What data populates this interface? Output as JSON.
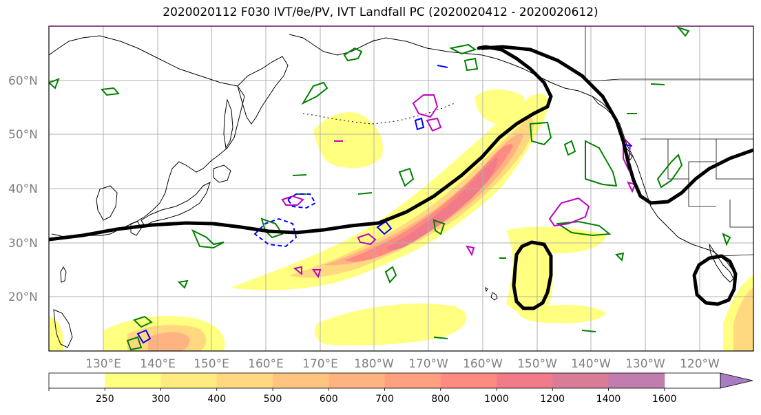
{
  "title": "2020020112 F030 IVT/θe/PV, IVT Landfall PC (2020020412 - 2020020612)",
  "map": {
    "type": "geographic-contour-map",
    "projection": "PlateCarree",
    "lon_range": [
      120,
      250
    ],
    "lat_range": [
      10,
      70
    ],
    "lat_ticks": [
      {
        "lat": 60,
        "label": "60°N"
      },
      {
        "lat": 50,
        "label": "50°N"
      },
      {
        "lat": 40,
        "label": "40°N"
      },
      {
        "lat": 30,
        "label": "30°N"
      },
      {
        "lat": 20,
        "label": "20°N"
      }
    ],
    "lon_ticks": [
      {
        "lon": 130,
        "label": "130°E"
      },
      {
        "lon": 140,
        "label": "140°E"
      },
      {
        "lon": 150,
        "label": "150°E"
      },
      {
        "lon": 160,
        "label": "160°E"
      },
      {
        "lon": 170,
        "label": "170°E"
      },
      {
        "lon": 180,
        "label": "180°W"
      },
      {
        "lon": 190,
        "label": "170°W"
      },
      {
        "lon": 200,
        "label": "160°W"
      },
      {
        "lon": 210,
        "label": "150°W"
      },
      {
        "lon": 220,
        "label": "140°W"
      },
      {
        "lon": 230,
        "label": "130°W"
      },
      {
        "lon": 240,
        "label": "120°W"
      }
    ],
    "grid": true,
    "layers": {
      "ivt_fill": "IVT shaded contours (kg m-1 s-1)",
      "pc_line": "black thick line: IVT Landfall PC",
      "theta_e": "green contours",
      "pv": "magenta contours",
      "blue": "blue contours (solid and dashed)"
    }
  },
  "colorbar": {
    "levels": [
      250,
      300,
      400,
      500,
      600,
      700,
      800,
      1000,
      1200,
      1400,
      1600
    ],
    "labels": [
      "250",
      "300",
      "400",
      "500",
      "600",
      "700",
      "800",
      "1000",
      "1200",
      "1400",
      "1600"
    ],
    "colors": [
      "#ffffff",
      "#ffff80",
      "#ffeb80",
      "#ffd880",
      "#ffc580",
      "#ffb380",
      "#ffa080",
      "#ff8a80",
      "#f17b88",
      "#d87c98",
      "#c07dad",
      "#a87cc2"
    ],
    "extend": "max"
  }
}
